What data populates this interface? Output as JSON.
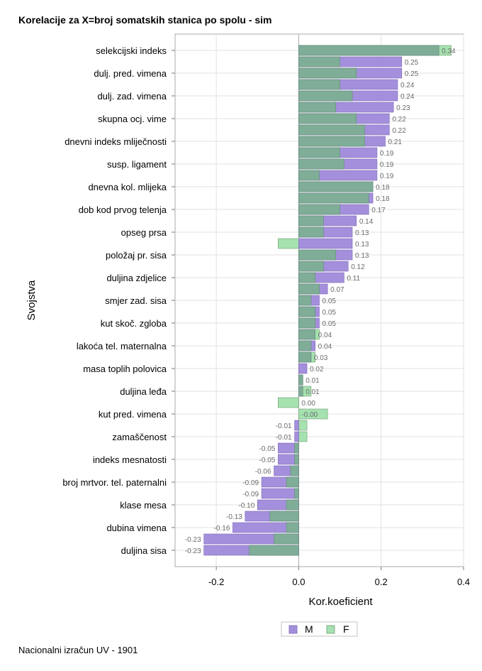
{
  "footnote": "Nacionalni izračun UV - 1901",
  "chart_data": {
    "type": "bar",
    "orientation": "horizontal",
    "title": "Korelacije za X=broj somatskih stanica po spolu - sim",
    "xlabel": "Kor.koeficient",
    "ylabel": "Svojstva",
    "xlim": [
      -0.3,
      0.4
    ],
    "xticks": [
      -0.2,
      0.0,
      0.2,
      0.4
    ],
    "xtick_labels": [
      "-0.2",
      "0.0",
      "0.2",
      "0.4"
    ],
    "grid": true,
    "legend_position": "bottom",
    "colors": {
      "M": "#a48fdc",
      "F": "#a6e1b0",
      "overlap": "#7fad98"
    },
    "categories": [
      "selekcijski indeks",
      "",
      "dulj. pred. vimena",
      "",
      "dulj. zad. vimena",
      "",
      "skupna ocj. vime",
      "",
      "dnevni indeks mliječnosti",
      "",
      "susp. ligament",
      "",
      "dnevna kol. mlijeka",
      "",
      "dob kod prvog telenja",
      "",
      "opseg prsa",
      "",
      "položaj pr. sisa",
      "",
      "duljina zdjelice",
      "",
      "smjer zad. sisa",
      "",
      "kut skoč. zgloba",
      "",
      "lakoća tel. maternalna",
      "",
      "masa toplih polovica",
      "",
      "duljina leđa",
      "",
      "kut pred. vimena",
      "",
      "zamaščenost",
      "",
      "indeks mesnatosti",
      "",
      "broj mrtvor. tel. paternalni",
      "",
      "klase mesa",
      "",
      "dubina vimena",
      "",
      "duljina sisa"
    ],
    "series": [
      {
        "name": "M",
        "values": [
          0.34,
          0.25,
          0.25,
          0.24,
          0.24,
          0.23,
          0.22,
          0.22,
          0.21,
          0.19,
          0.19,
          0.19,
          0.18,
          0.18,
          0.17,
          0.14,
          0.13,
          0.13,
          0.13,
          0.12,
          0.11,
          0.07,
          0.05,
          0.05,
          0.05,
          0.04,
          0.04,
          0.03,
          0.02,
          0.01,
          0.01,
          0.0,
          -0.0,
          -0.01,
          -0.01,
          -0.05,
          -0.05,
          -0.06,
          -0.09,
          -0.09,
          -0.1,
          -0.13,
          -0.16,
          -0.23,
          -0.23
        ]
      },
      {
        "name": "F",
        "values": [
          0.37,
          0.1,
          0.14,
          0.1,
          0.13,
          0.09,
          0.14,
          0.16,
          0.16,
          0.1,
          0.11,
          0.05,
          0.18,
          0.17,
          0.1,
          0.06,
          0.06,
          -0.05,
          0.09,
          0.06,
          0.04,
          0.05,
          0.03,
          0.04,
          0.04,
          0.05,
          0.03,
          0.04,
          0.0,
          0.01,
          0.03,
          -0.05,
          0.07,
          0.02,
          0.02,
          -0.01,
          -0.01,
          -0.02,
          -0.03,
          -0.01,
          -0.03,
          -0.07,
          -0.03,
          -0.06,
          -0.12
        ]
      }
    ],
    "value_labels": [
      "0.34",
      "0.25",
      "0.25",
      "0.24",
      "0.24",
      "0.23",
      "0.22",
      "0.22",
      "0.21",
      "0.19",
      "0.19",
      "0.19",
      "0.18",
      "0.18",
      "0.17",
      "0.14",
      "0.13",
      "0.13",
      "0.13",
      "0.12",
      "0.11",
      "0.07",
      "0.05",
      "0.05",
      "0.05",
      "0.04",
      "0.04",
      "0.03",
      "0.02",
      "0.01",
      "0.01",
      "0.00",
      "-0.00",
      "-0.01",
      "-0.01",
      "-0.05",
      "-0.05",
      "-0.06",
      "-0.09",
      "-0.09",
      "-0.10",
      "-0.13",
      "-0.16",
      "-0.23",
      "-0.23"
    ]
  }
}
